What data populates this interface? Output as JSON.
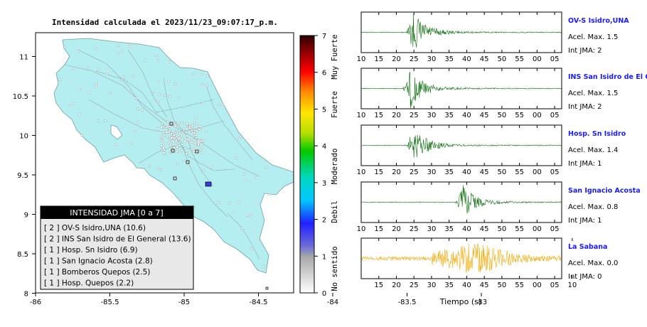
{
  "title": "Intensidad calculada el 2023/11/23_09:07:17_p.m.",
  "map": {
    "x_ticks": [
      "-86",
      "-85.5",
      "-85",
      "-84.5",
      "-84",
      "-83.5",
      "-83"
    ],
    "y_ticks": [
      "11",
      "10.5",
      "10",
      "9.5",
      "9",
      "8.5",
      "8"
    ],
    "land_color": "#b5eef0",
    "water_color": "#ffffff"
  },
  "legend": {
    "header": "INTENSIDAD JMA [0 a 7]",
    "items": [
      "[ 2 ]  OV-S Isidro,UNA (10.6)",
      "[ 2 ]  INS San Isidro de El General (13.6)",
      "[ 1 ]  Hosp. Sn Isidro (6.9)",
      "[ 1 ]  San Ignacio Acosta (2.8)",
      "[ 1 ]  Bomberos Quepos (2.5)",
      "[ 1 ]  Hosp. Quepos (2.2)"
    ]
  },
  "colorbar": {
    "ticks": [
      "0",
      "1",
      "2",
      "3",
      "4",
      "5",
      "6",
      "7"
    ],
    "labels": [
      "No sentido",
      "Debil",
      "Moderado",
      "Fuerte",
      "Muy Fuerte"
    ]
  },
  "chart_data": {
    "type": "line",
    "description_units": "seismograms, x axis seconds",
    "time_ticks": [
      "10",
      "15",
      "20",
      "25",
      "30",
      "35",
      "40",
      "45",
      "50",
      "55",
      "00",
      "05"
    ],
    "last_time_ticks": [
      "15",
      "20",
      "25",
      "30",
      "35",
      "40",
      "45",
      "50",
      "55",
      "00",
      "05",
      "10"
    ],
    "xlabel": "Tiempo (s)",
    "stations": [
      {
        "name": "OV-S Isidro,UNA",
        "acel": "Acel. Max. 1.5",
        "jma": "Int JMA: 2",
        "color": "#0a6e0a",
        "onset": 23,
        "amp": 1.0
      },
      {
        "name": "INS San Isidro de El Ge",
        "acel": "Acel. Max. 1.5",
        "jma": "Int JMA: 2",
        "color": "#0a6e0a",
        "onset": 22,
        "amp": 1.0
      },
      {
        "name": "Hosp. Sn Isidro",
        "acel": "Acel. Max. 1.4",
        "jma": "Int JMA: 1",
        "color": "#0a6e0a",
        "onset": 23,
        "amp": 0.9
      },
      {
        "name": "San Ignacio Acosta",
        "acel": "Acel. Max. 0.8",
        "jma": "Int JMA: 1",
        "color": "#0a6e0a",
        "onset": 37,
        "amp": 0.85
      },
      {
        "name": "La Sabana",
        "acel": "Acel. Max. 0.0",
        "jma": "Int JMA: 0",
        "color": "#f2a900",
        "onset": 30,
        "amp": 0.6
      }
    ]
  }
}
